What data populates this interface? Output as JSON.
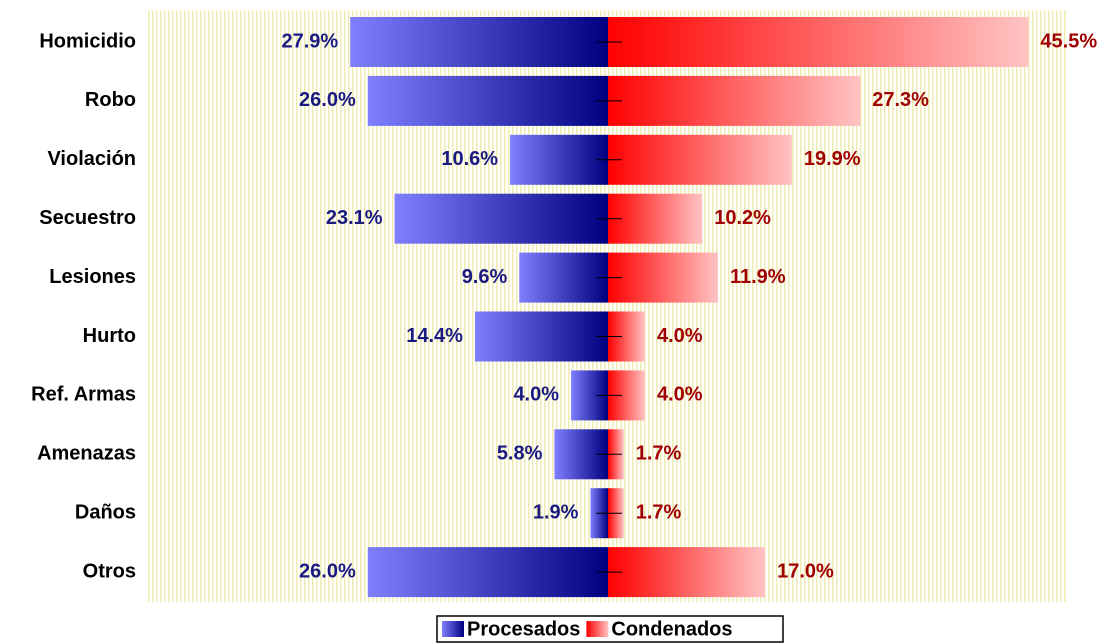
{
  "chart_data": {
    "type": "diverging-bar",
    "categories": [
      "Homicidio",
      "Robo",
      "Violación",
      "Secuestro",
      "Lesiones",
      "Hurto",
      "Ref. Armas",
      "Amenazas",
      "Daños",
      "Otros"
    ],
    "series": [
      {
        "name": "Procesados",
        "color": "#000080",
        "values": [
          27.9,
          26.0,
          10.6,
          23.1,
          9.6,
          14.4,
          4.0,
          5.8,
          1.9,
          26.0
        ],
        "value_labels": [
          "27.9%",
          "26.0%",
          "10.6%",
          "23.1%",
          "9.6%",
          "14.4%",
          "4.0%",
          "5.8%",
          "1.9%",
          "26.0%"
        ]
      },
      {
        "name": "Condenados",
        "color": "#ff0000",
        "values": [
          45.5,
          27.3,
          19.9,
          10.2,
          11.9,
          4.0,
          4.0,
          1.7,
          1.7,
          17.0
        ],
        "value_labels": [
          "45.5%",
          "27.3%",
          "19.9%",
          "10.2%",
          "11.9%",
          "4.0%",
          "4.0%",
          "1.7%",
          "1.7%",
          "17.0%"
        ]
      }
    ]
  }
}
